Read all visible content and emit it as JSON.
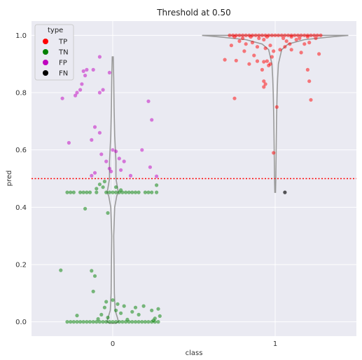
{
  "chart_data": {
    "type": "scatter",
    "title": "Threshold at 0.50",
    "xlabel": "class",
    "ylabel": "pred",
    "categories": [
      "0",
      "1"
    ],
    "ylim": [
      -0.05,
      1.05
    ],
    "yticks": [
      "0.0",
      "0.2",
      "0.4",
      "0.6",
      "0.8",
      "1.0"
    ],
    "threshold": 0.5,
    "grid": true,
    "legend": {
      "title": "type",
      "placement": "top-left",
      "entries": [
        {
          "label": "TP",
          "color": "#ff0000"
        },
        {
          "label": "TN",
          "color": "#008000"
        },
        {
          "label": "FP",
          "color": "#bf00bf"
        },
        {
          "label": "FN",
          "color": "#000000"
        }
      ]
    },
    "series": [
      {
        "name": "TP",
        "color": "#ff0000",
        "points": [
          [
            0.72,
            1.0
          ],
          [
            0.74,
            1.0
          ],
          [
            0.76,
            1.0
          ],
          [
            0.78,
            1.0
          ],
          [
            0.8,
            1.0
          ],
          [
            0.82,
            1.0
          ],
          [
            0.84,
            1.0
          ],
          [
            0.86,
            1.0
          ],
          [
            0.88,
            1.0
          ],
          [
            0.9,
            1.0
          ],
          [
            0.92,
            1.0
          ],
          [
            0.94,
            1.0
          ],
          [
            0.96,
            1.0
          ],
          [
            0.98,
            1.0
          ],
          [
            1.0,
            1.0
          ],
          [
            1.02,
            1.0
          ],
          [
            1.04,
            1.0
          ],
          [
            1.06,
            1.0
          ],
          [
            1.08,
            1.0
          ],
          [
            1.1,
            1.0
          ],
          [
            1.12,
            1.0
          ],
          [
            1.14,
            1.0
          ],
          [
            1.16,
            1.0
          ],
          [
            1.18,
            1.0
          ],
          [
            1.2,
            1.0
          ],
          [
            1.22,
            1.0
          ],
          [
            1.24,
            1.0
          ],
          [
            1.26,
            1.0
          ],
          [
            1.28,
            1.0
          ],
          [
            0.75,
            0.995
          ],
          [
            0.8,
            0.99
          ],
          [
            0.85,
            0.995
          ],
          [
            0.9,
            0.99
          ],
          [
            0.95,
            0.995
          ],
          [
            1.05,
            0.99
          ],
          [
            1.1,
            0.995
          ],
          [
            1.15,
            0.99
          ],
          [
            1.2,
            0.995
          ],
          [
            1.25,
            0.99
          ],
          [
            0.78,
            0.98
          ],
          [
            0.86,
            0.975
          ],
          [
            0.93,
            0.985
          ],
          [
            1.07,
            0.98
          ],
          [
            1.13,
            0.985
          ],
          [
            1.21,
            0.975
          ],
          [
            0.82,
            0.97
          ],
          [
            0.97,
            0.965
          ],
          [
            1.18,
            0.97
          ],
          [
            0.89,
            0.96
          ],
          [
            1.03,
            0.95
          ],
          [
            1.09,
            0.97
          ],
          [
            0.73,
            0.965
          ],
          [
            0.94,
            0.955
          ],
          [
            1.06,
            0.96
          ],
          [
            0.81,
            0.945
          ],
          [
            1.16,
            0.94
          ],
          [
            0.87,
            0.93
          ],
          [
            0.99,
            0.945
          ],
          [
            0.69,
            0.915
          ],
          [
            0.76,
            0.912
          ],
          [
            0.84,
            0.9
          ],
          [
            0.89,
            0.91
          ],
          [
            0.93,
            0.908
          ],
          [
            0.95,
            0.91
          ],
          [
            1.27,
            0.935
          ],
          [
            1.1,
            0.95
          ],
          [
            0.98,
            0.925
          ],
          [
            0.97,
            0.9
          ],
          [
            0.96,
            0.895
          ],
          [
            0.92,
            0.88
          ],
          [
            0.93,
            0.84
          ],
          [
            0.94,
            0.83
          ],
          [
            0.93,
            0.82
          ],
          [
            1.01,
            0.75
          ],
          [
            0.75,
            0.78
          ],
          [
            1.2,
            0.88
          ],
          [
            1.21,
            0.84
          ],
          [
            1.22,
            0.775
          ],
          [
            0.99,
            0.59
          ]
        ]
      },
      {
        "name": "TN",
        "color": "#008000",
        "points": [
          [
            -0.28,
            0.0
          ],
          [
            -0.26,
            0.0
          ],
          [
            -0.24,
            0.0
          ],
          [
            -0.22,
            0.0
          ],
          [
            -0.2,
            0.0
          ],
          [
            -0.18,
            0.0
          ],
          [
            -0.16,
            0.0
          ],
          [
            -0.14,
            0.0
          ],
          [
            -0.12,
            0.0
          ],
          [
            -0.1,
            0.0
          ],
          [
            -0.08,
            0.0
          ],
          [
            -0.06,
            0.0
          ],
          [
            -0.04,
            0.0
          ],
          [
            -0.02,
            0.0
          ],
          [
            0.0,
            0.0
          ],
          [
            0.02,
            0.0
          ],
          [
            0.04,
            0.0
          ],
          [
            0.06,
            0.0
          ],
          [
            0.08,
            0.0
          ],
          [
            0.1,
            0.0
          ],
          [
            0.12,
            0.0
          ],
          [
            0.14,
            0.0
          ],
          [
            0.16,
            0.0
          ],
          [
            0.18,
            0.0
          ],
          [
            0.2,
            0.0
          ],
          [
            0.22,
            0.0
          ],
          [
            0.24,
            0.0
          ],
          [
            0.26,
            0.0
          ],
          [
            0.28,
            0.0
          ],
          [
            -0.28,
            0.452
          ],
          [
            -0.26,
            0.452
          ],
          [
            -0.24,
            0.452
          ],
          [
            -0.2,
            0.452
          ],
          [
            -0.18,
            0.452
          ],
          [
            -0.16,
            0.452
          ],
          [
            -0.14,
            0.452
          ],
          [
            -0.1,
            0.452
          ],
          [
            -0.04,
            0.452
          ],
          [
            -0.02,
            0.452
          ],
          [
            0.0,
            0.452
          ],
          [
            0.02,
            0.452
          ],
          [
            0.04,
            0.452
          ],
          [
            0.06,
            0.452
          ],
          [
            0.08,
            0.452
          ],
          [
            0.1,
            0.452
          ],
          [
            0.12,
            0.452
          ],
          [
            0.14,
            0.452
          ],
          [
            0.16,
            0.452
          ],
          [
            0.2,
            0.452
          ],
          [
            0.22,
            0.452
          ],
          [
            0.24,
            0.452
          ],
          [
            0.27,
            0.452
          ],
          [
            -0.1,
            0.465
          ],
          [
            -0.08,
            0.48
          ],
          [
            -0.06,
            0.47
          ],
          [
            -0.05,
            0.49
          ],
          [
            0.02,
            0.47
          ],
          [
            0.05,
            0.46
          ],
          [
            0.27,
            0.477
          ],
          [
            -0.17,
            0.395
          ],
          [
            -0.03,
            0.38
          ],
          [
            -0.32,
            0.18
          ],
          [
            -0.13,
            0.178
          ],
          [
            -0.11,
            0.16
          ],
          [
            -0.12,
            0.106
          ],
          [
            -0.04,
            0.07
          ],
          [
            0.03,
            0.062
          ],
          [
            -0.05,
            0.05
          ],
          [
            0.07,
            0.055
          ],
          [
            0.14,
            0.05
          ],
          [
            0.19,
            0.055
          ],
          [
            0.28,
            0.045
          ],
          [
            0.24,
            0.04
          ],
          [
            0.12,
            0.035
          ],
          [
            0.05,
            0.03
          ],
          [
            -0.07,
            0.025
          ],
          [
            -0.22,
            0.022
          ],
          [
            0.16,
            0.025
          ],
          [
            0.29,
            0.02
          ],
          [
            0.26,
            0.012
          ],
          [
            0.25,
            0.005
          ],
          [
            -0.03,
            0.015
          ],
          [
            0.0,
            0.076
          ],
          [
            0.02,
            0.04
          ],
          [
            -0.09,
            0.01
          ],
          [
            0.09,
            0.008
          ]
        ]
      },
      {
        "name": "FP",
        "color": "#bf00bf",
        "points": [
          [
            -0.23,
            0.79
          ],
          [
            -0.22,
            0.8
          ],
          [
            -0.2,
            0.81
          ],
          [
            -0.18,
            0.875
          ],
          [
            -0.17,
            0.86
          ],
          [
            -0.16,
            0.88
          ],
          [
            -0.19,
            0.83
          ],
          [
            -0.12,
            0.88
          ],
          [
            -0.08,
            0.925
          ],
          [
            -0.08,
            0.8
          ],
          [
            -0.06,
            0.81
          ],
          [
            -0.02,
            0.87
          ],
          [
            -0.31,
            0.78
          ],
          [
            -0.27,
            0.625
          ],
          [
            -0.13,
            0.635
          ],
          [
            -0.11,
            0.68
          ],
          [
            -0.08,
            0.66
          ],
          [
            0.22,
            0.77
          ],
          [
            0.24,
            0.705
          ],
          [
            -0.07,
            0.585
          ],
          [
            -0.04,
            0.56
          ],
          [
            0.0,
            0.6
          ],
          [
            0.02,
            0.595
          ],
          [
            0.04,
            0.57
          ],
          [
            0.07,
            0.56
          ],
          [
            0.05,
            0.53
          ],
          [
            -0.02,
            0.535
          ],
          [
            -0.11,
            0.52
          ],
          [
            -0.13,
            0.51
          ],
          [
            0.11,
            0.51
          ],
          [
            0.18,
            0.6
          ],
          [
            0.23,
            0.54
          ],
          [
            0.27,
            0.508
          ],
          [
            -0.01,
            0.525
          ]
        ]
      },
      {
        "name": "FN",
        "color": "#000000",
        "points": [
          [
            1.06,
            0.452
          ]
        ]
      }
    ]
  }
}
